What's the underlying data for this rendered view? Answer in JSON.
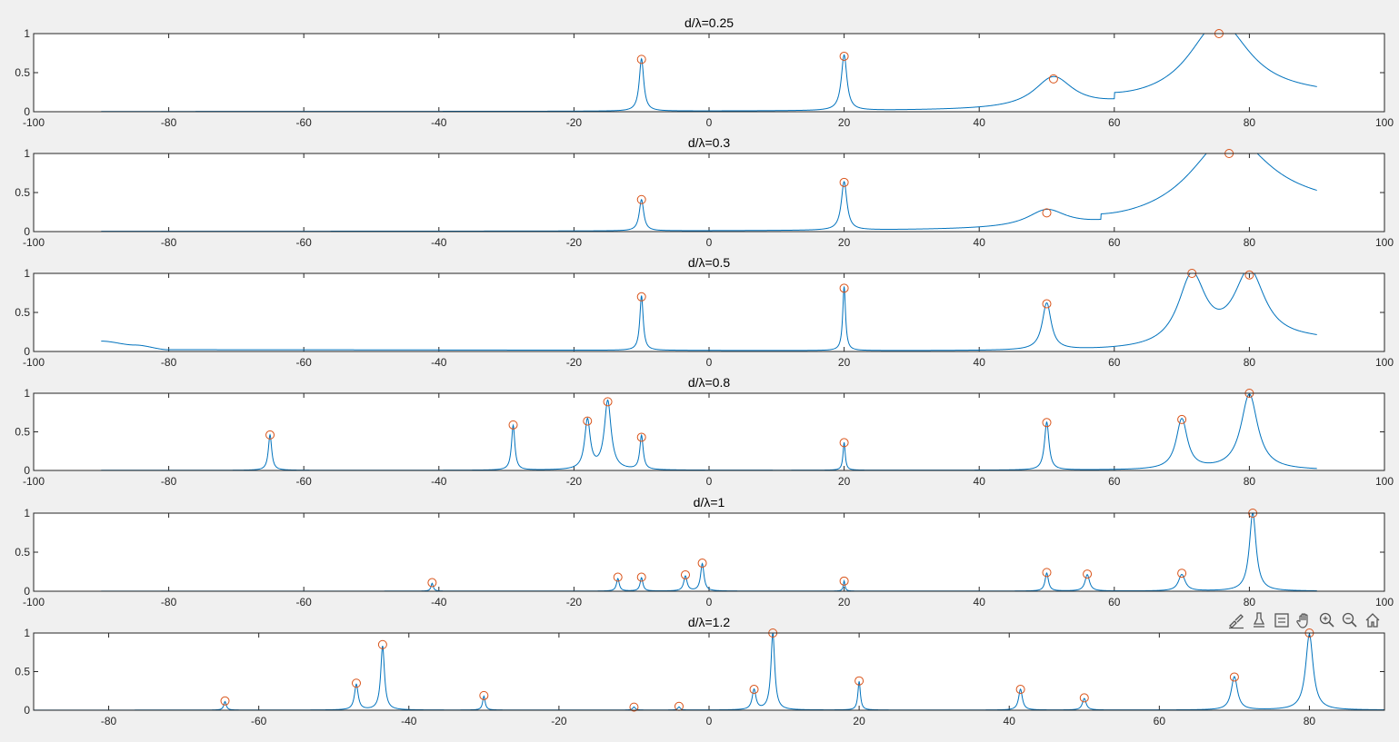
{
  "toolbar": {
    "icons": [
      "brush-icon",
      "data-tips-icon",
      "restore-view-icon",
      "pan-hand-icon",
      "zoom-in-icon",
      "zoom-out-icon",
      "home-icon"
    ]
  },
  "colors": {
    "line": "#0072BD",
    "marker": "#D95319",
    "axes_bg": "#ffffff",
    "figure_bg": "#f0f0f0"
  },
  "chart_data": [
    {
      "type": "line",
      "title": "d/λ=0.25",
      "xlim": [
        -100,
        100
      ],
      "ylim": [
        0,
        1
      ],
      "xticks": [
        "-100",
        "-80",
        "-60",
        "-40",
        "-20",
        "0",
        "20",
        "40",
        "60",
        "80",
        "100"
      ],
      "yticks": [
        "0",
        "0.5",
        "1"
      ],
      "x_range": [
        -90,
        90
      ],
      "baseline": 0.002,
      "peaks": [
        {
          "x": -10,
          "y": 0.67,
          "w": 0.4
        },
        {
          "x": 20,
          "y": 0.71,
          "w": 0.5
        },
        {
          "x": 51,
          "y": 0.4,
          "w": 3.5
        },
        {
          "x": 75.5,
          "y": 1.0,
          "w": 5.5
        }
      ],
      "tail": [
        {
          "x": 60,
          "y": 0.08
        },
        {
          "x": 90,
          "y": 0.19
        }
      ],
      "markers": [
        {
          "x": -10,
          "y": 0.67
        },
        {
          "x": 20,
          "y": 0.71
        },
        {
          "x": 51,
          "y": 0.42
        },
        {
          "x": 75.5,
          "y": 1.0
        }
      ]
    },
    {
      "type": "line",
      "title": "d/λ=0.3",
      "xlim": [
        -100,
        100
      ],
      "ylim": [
        0,
        1
      ],
      "xticks": [
        "-100",
        "-80",
        "-60",
        "-40",
        "-20",
        "0",
        "20",
        "40",
        "60",
        "80",
        "100"
      ],
      "yticks": [
        "0",
        "0.5",
        "1"
      ],
      "x_range": [
        -90,
        90
      ],
      "baseline": 0.002,
      "peaks": [
        {
          "x": -10,
          "y": 0.4,
          "w": 0.4
        },
        {
          "x": 20,
          "y": 0.62,
          "w": 0.5
        },
        {
          "x": 50,
          "y": 0.22,
          "w": 3.5
        },
        {
          "x": 77,
          "y": 1.0,
          "w": 7
        }
      ],
      "tail": [
        {
          "x": 58,
          "y": 0.07
        },
        {
          "x": 90,
          "y": 0.3
        }
      ],
      "markers": [
        {
          "x": -10,
          "y": 0.41
        },
        {
          "x": 20,
          "y": 0.63
        },
        {
          "x": 50,
          "y": 0.24
        },
        {
          "x": 77,
          "y": 1.0
        }
      ]
    },
    {
      "type": "line",
      "title": "d/λ=0.5",
      "xlim": [
        -100,
        100
      ],
      "ylim": [
        0,
        1
      ],
      "xticks": [
        "-100",
        "-80",
        "-60",
        "-40",
        "-20",
        "0",
        "20",
        "40",
        "60",
        "80",
        "100"
      ],
      "yticks": [
        "0",
        "0.5",
        "1"
      ],
      "x_range": [
        -90,
        90
      ],
      "baseline": 0.002,
      "peaks": [
        {
          "x": -10,
          "y": 0.7,
          "w": 0.3
        },
        {
          "x": 20,
          "y": 0.82,
          "w": 0.25
        },
        {
          "x": 50,
          "y": 0.6,
          "w": 0.8
        },
        {
          "x": 71.5,
          "y": 0.92,
          "w": 2.5
        },
        {
          "x": 80,
          "y": 0.92,
          "w": 2.8
        }
      ],
      "tail": [
        {
          "x": -90,
          "y": 0.13
        },
        {
          "x": -85,
          "y": 0.08
        },
        {
          "x": -80,
          "y": 0.02
        },
        {
          "x": 70,
          "y": 0.0
        },
        {
          "x": 90,
          "y": 0.13
        }
      ],
      "markers": [
        {
          "x": -10,
          "y": 0.7
        },
        {
          "x": 20,
          "y": 0.81
        },
        {
          "x": 50,
          "y": 0.61
        },
        {
          "x": 71.5,
          "y": 1.0
        },
        {
          "x": 80,
          "y": 0.98
        }
      ]
    },
    {
      "type": "line",
      "title": "d/λ=0.8",
      "xlim": [
        -100,
        100
      ],
      "ylim": [
        0,
        1
      ],
      "xticks": [
        "-100",
        "-80",
        "-60",
        "-40",
        "-20",
        "0",
        "20",
        "40",
        "60",
        "80",
        "100"
      ],
      "yticks": [
        "0",
        "0.5",
        "1"
      ],
      "x_range": [
        -90,
        90
      ],
      "baseline": 0.002,
      "peaks": [
        {
          "x": -65,
          "y": 0.46,
          "w": 0.3
        },
        {
          "x": -29,
          "y": 0.58,
          "w": 0.3
        },
        {
          "x": -18,
          "y": 0.64,
          "w": 0.5
        },
        {
          "x": -15,
          "y": 0.89,
          "w": 0.6
        },
        {
          "x": -10,
          "y": 0.44,
          "w": 0.3
        },
        {
          "x": 20,
          "y": 0.36,
          "w": 0.2
        },
        {
          "x": 50,
          "y": 0.62,
          "w": 0.4
        },
        {
          "x": 70,
          "y": 0.65,
          "w": 1.0
        },
        {
          "x": 80,
          "y": 0.98,
          "w": 1.5
        }
      ],
      "tail": [
        {
          "x": 90,
          "y": 0.03
        }
      ],
      "markers": [
        {
          "x": -65,
          "y": 0.46
        },
        {
          "x": -29,
          "y": 0.59
        },
        {
          "x": -18,
          "y": 0.64
        },
        {
          "x": -15,
          "y": 0.89
        },
        {
          "x": -10,
          "y": 0.43
        },
        {
          "x": 20,
          "y": 0.36
        },
        {
          "x": 50,
          "y": 0.62
        },
        {
          "x": 70,
          "y": 0.66
        },
        {
          "x": 80,
          "y": 1.0
        }
      ]
    },
    {
      "type": "line",
      "title": "d/λ=1",
      "xlim": [
        -100,
        100
      ],
      "ylim": [
        0,
        1
      ],
      "xticks": [
        "-100",
        "-80",
        "-60",
        "-40",
        "-20",
        "0",
        "20",
        "40",
        "60",
        "80",
        "100"
      ],
      "yticks": [
        "0",
        "0.5",
        "1"
      ],
      "x_range": [
        -90,
        90
      ],
      "baseline": 0.002,
      "peaks": [
        {
          "x": -41,
          "y": 0.1,
          "w": 0.2
        },
        {
          "x": -13.5,
          "y": 0.16,
          "w": 0.25
        },
        {
          "x": -10,
          "y": 0.17,
          "w": 0.25
        },
        {
          "x": -3.5,
          "y": 0.19,
          "w": 0.3
        },
        {
          "x": -1,
          "y": 0.35,
          "w": 0.3
        },
        {
          "x": 20,
          "y": 0.13,
          "w": 0.15
        },
        {
          "x": 50,
          "y": 0.23,
          "w": 0.3
        },
        {
          "x": 56,
          "y": 0.21,
          "w": 0.4
        },
        {
          "x": 70,
          "y": 0.21,
          "w": 0.6
        },
        {
          "x": 80.5,
          "y": 1.0,
          "w": 0.6
        }
      ],
      "tail": [],
      "markers": [
        {
          "x": -41,
          "y": 0.11
        },
        {
          "x": -13.5,
          "y": 0.18
        },
        {
          "x": -10,
          "y": 0.18
        },
        {
          "x": -3.5,
          "y": 0.21
        },
        {
          "x": -1,
          "y": 0.36
        },
        {
          "x": 20,
          "y": 0.13
        },
        {
          "x": 50,
          "y": 0.24
        },
        {
          "x": 56,
          "y": 0.22
        },
        {
          "x": 70,
          "y": 0.23
        },
        {
          "x": 80.5,
          "y": 1.0
        }
      ]
    },
    {
      "type": "line",
      "title": "d/λ=1.2",
      "xlim": [
        -90,
        90
      ],
      "ylim": [
        0,
        1
      ],
      "xticks": [
        "-80",
        "-60",
        "-40",
        "-20",
        "0",
        "20",
        "40",
        "60",
        "80"
      ],
      "yticks": [
        "0",
        "0.5",
        "1"
      ],
      "x_range": [
        -90,
        90
      ],
      "baseline": 0.002,
      "peaks": [
        {
          "x": -64.5,
          "y": 0.11,
          "w": 0.2
        },
        {
          "x": -47,
          "y": 0.33,
          "w": 0.3
        },
        {
          "x": -43.5,
          "y": 0.83,
          "w": 0.3
        },
        {
          "x": -30,
          "y": 0.18,
          "w": 0.2
        },
        {
          "x": -10,
          "y": 0.04,
          "w": 0.2
        },
        {
          "x": -4,
          "y": 0.04,
          "w": 0.2
        },
        {
          "x": 6,
          "y": 0.26,
          "w": 0.3
        },
        {
          "x": 8.5,
          "y": 1.0,
          "w": 0.3
        },
        {
          "x": 20,
          "y": 0.37,
          "w": 0.2
        },
        {
          "x": 41.5,
          "y": 0.27,
          "w": 0.3
        },
        {
          "x": 50,
          "y": 0.15,
          "w": 0.3
        },
        {
          "x": 70,
          "y": 0.43,
          "w": 0.5
        },
        {
          "x": 80,
          "y": 0.98,
          "w": 0.6
        }
      ],
      "tail": [],
      "markers": [
        {
          "x": -64.5,
          "y": 0.12
        },
        {
          "x": -47,
          "y": 0.35
        },
        {
          "x": -43.5,
          "y": 0.85
        },
        {
          "x": -30,
          "y": 0.19
        },
        {
          "x": -10,
          "y": 0.04
        },
        {
          "x": -4,
          "y": 0.05
        },
        {
          "x": 6,
          "y": 0.27
        },
        {
          "x": 8.5,
          "y": 1.0
        },
        {
          "x": 20,
          "y": 0.38
        },
        {
          "x": 41.5,
          "y": 0.27
        },
        {
          "x": 50,
          "y": 0.16
        },
        {
          "x": 70,
          "y": 0.43
        },
        {
          "x": 80,
          "y": 1.0
        }
      ]
    }
  ]
}
